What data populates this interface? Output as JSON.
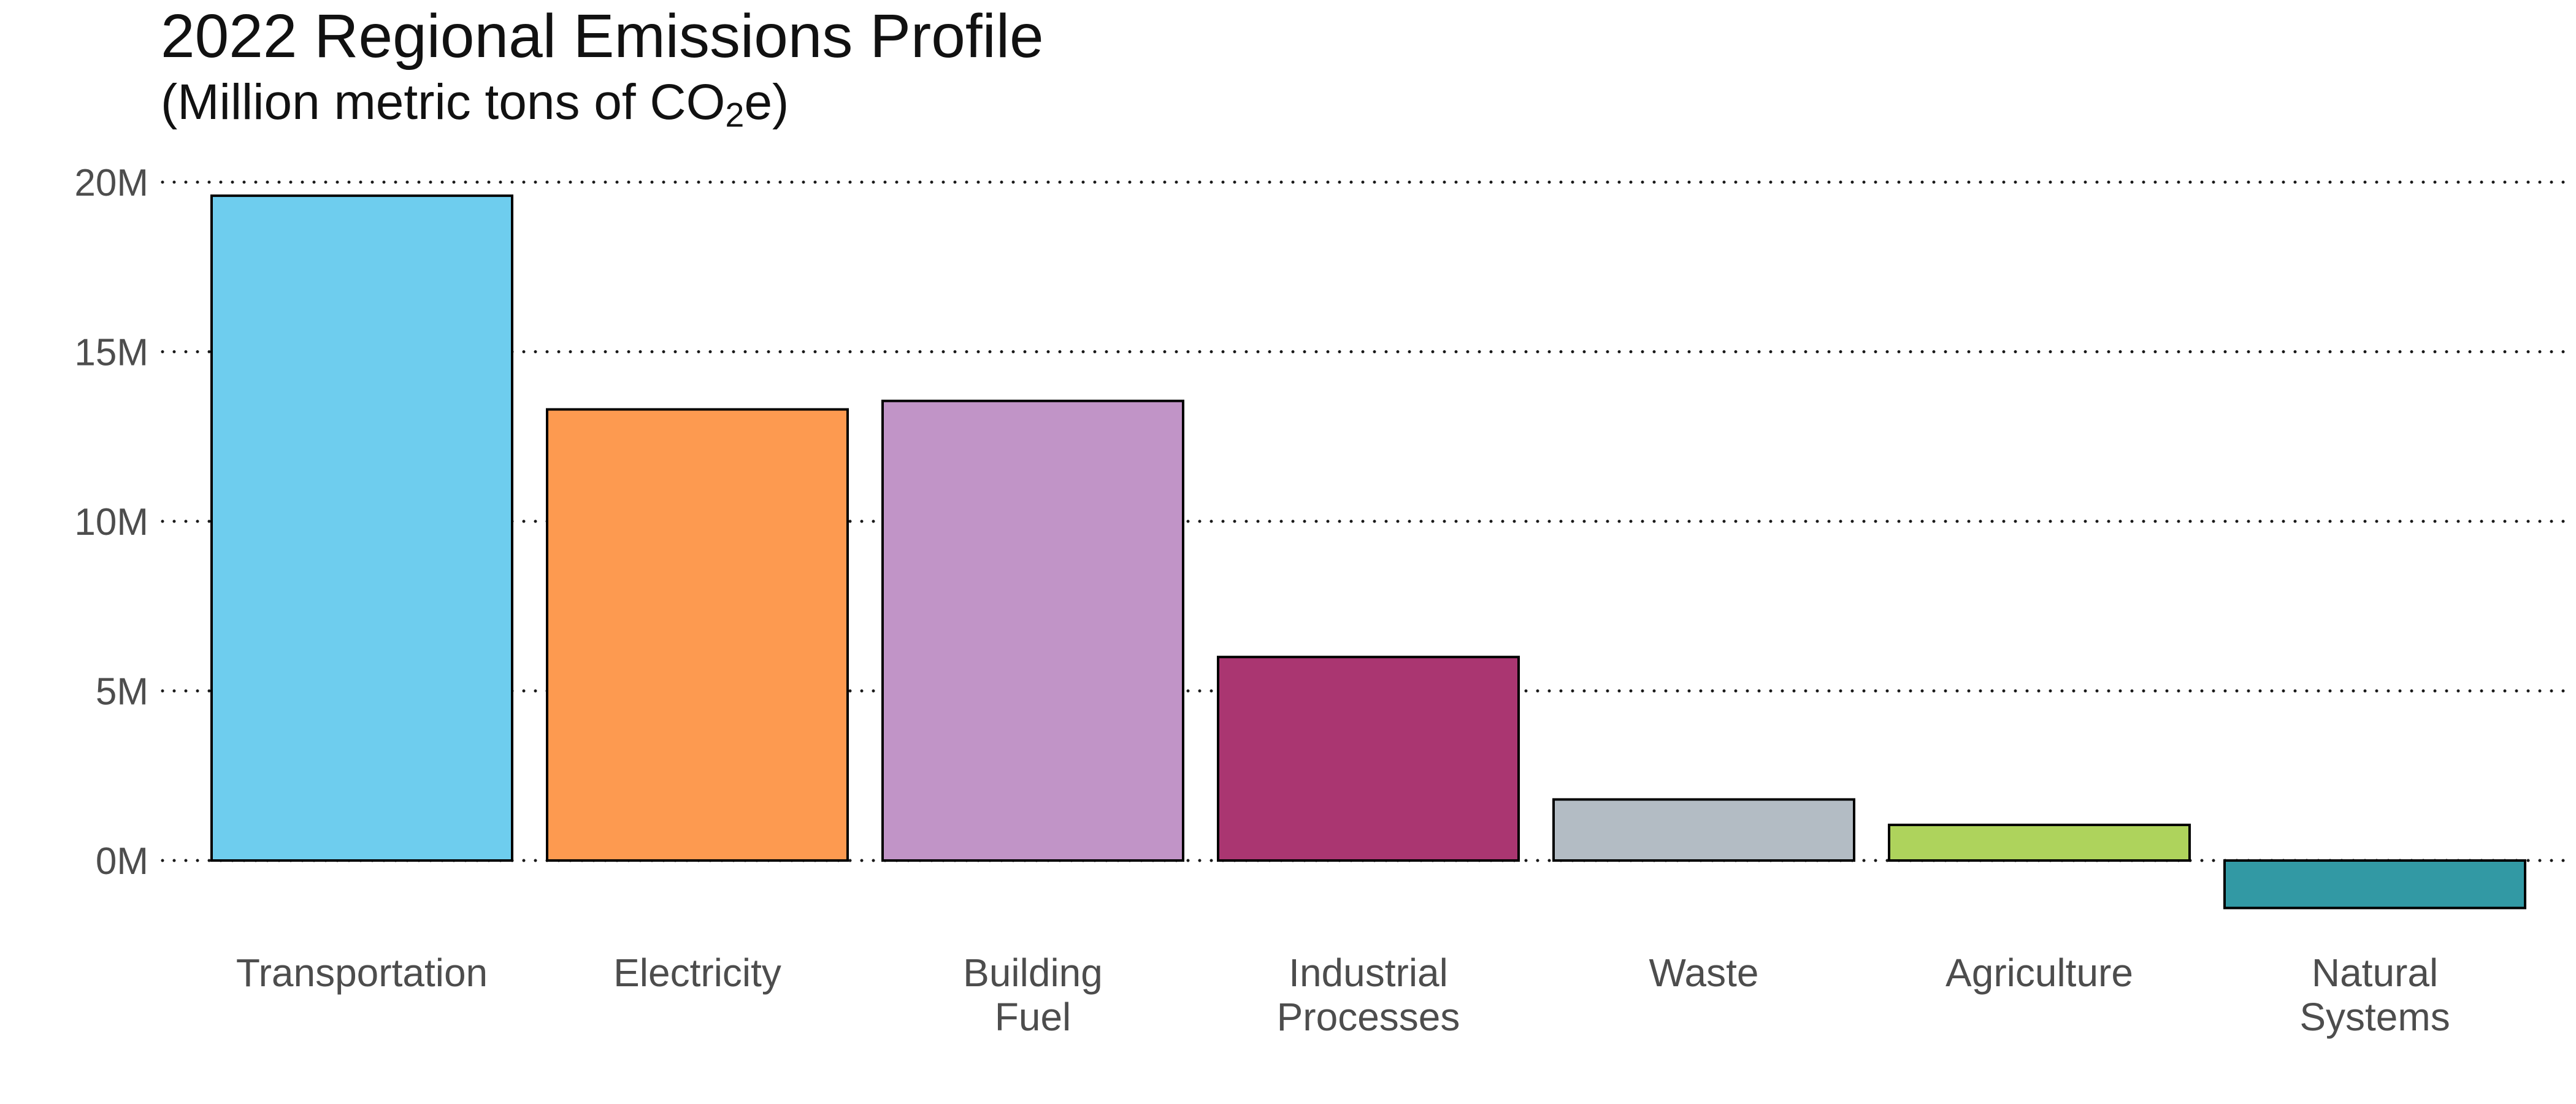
{
  "chart_data": {
    "type": "bar",
    "title": "2022 Regional Emissions Profile",
    "subtitle": {
      "before": "(Million metric tons of CO",
      "sub": "2",
      "after": "e)"
    },
    "xlabel": "",
    "ylabel": "",
    "ylim": [
      -1.5,
      20
    ],
    "yticks": [
      {
        "value": 0,
        "label": "0M"
      },
      {
        "value": 5,
        "label": "5M"
      },
      {
        "value": 10,
        "label": "10M"
      },
      {
        "value": 15,
        "label": "15M"
      },
      {
        "value": 20,
        "label": "20M"
      }
    ],
    "grid": "horizontal dotted",
    "legend": "none",
    "categories": [
      [
        "Transportation"
      ],
      [
        "Electricity"
      ],
      [
        "Building",
        "Fuel"
      ],
      [
        "Industrial",
        "Processes"
      ],
      [
        "Waste"
      ],
      [
        "Agriculture"
      ],
      [
        "Natural",
        "Systems"
      ]
    ],
    "values": [
      19.6,
      13.3,
      13.55,
      6.0,
      1.8,
      1.05,
      -1.4
    ],
    "colors": [
      "#6ecdee",
      "#fd9a50",
      "#c194c7",
      "#aa3671",
      "#b3bcc4",
      "#aed35c",
      "#3299a4"
    ]
  }
}
